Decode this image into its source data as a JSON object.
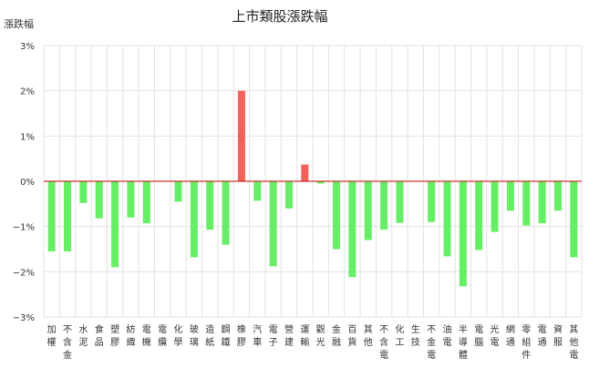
{
  "chart_data": {
    "type": "bar",
    "title": "上市類股漲跌幅",
    "ylabel": "漲跌幅",
    "xlabel": "",
    "y_unit": "%",
    "ylim": [
      -3,
      3
    ],
    "y_ticks": [
      "3%",
      "2%",
      "1%",
      "0%",
      "−1%",
      "−2%",
      "−3%"
    ],
    "grid": true,
    "legend": "none",
    "colors": {
      "up": "#f4605a",
      "down": "#66ee66",
      "zero_line": "#cc0000",
      "grid": "#e3e3e3"
    },
    "categories": [
      "加權",
      "不含金",
      "水泥",
      "食品",
      "塑膠",
      "紡織",
      "電機",
      "電纜",
      "化學",
      "玻璃",
      "造紙",
      "鋼鐵",
      "橡膠",
      "汽車",
      "電子",
      "營建",
      "運輸",
      "觀光",
      "金融",
      "百貨",
      "其他",
      "不含電",
      "化工",
      "生技",
      "不金電",
      "油電",
      "半導體",
      "電腦",
      "光電",
      "網通",
      "零組件",
      "電通",
      "資服",
      "其他電"
    ],
    "values": [
      -1.55,
      -1.55,
      -0.48,
      -0.82,
      -1.9,
      -0.8,
      -0.93,
      0,
      -0.45,
      -1.68,
      -1.07,
      -1.4,
      2.0,
      -0.43,
      -1.88,
      -0.6,
      0.37,
      -0.05,
      -1.5,
      -2.12,
      -1.3,
      -1.07,
      -0.92,
      0,
      -0.9,
      -1.66,
      -2.32,
      -1.52,
      -1.12,
      -0.65,
      -0.98,
      -0.93,
      -0.65,
      -1.68
    ]
  }
}
